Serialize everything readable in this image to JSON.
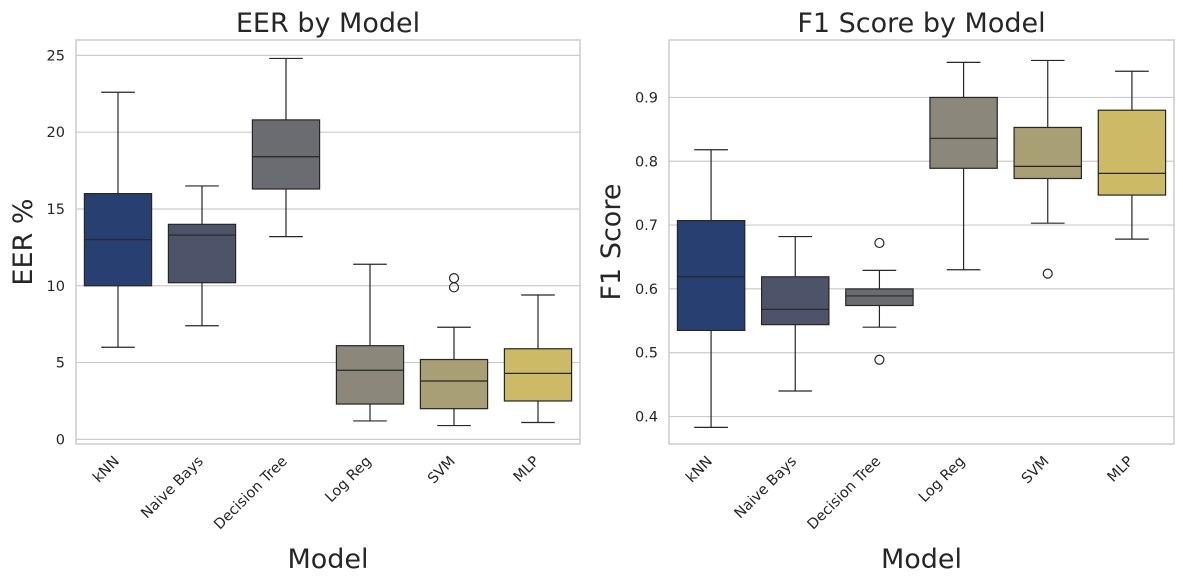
{
  "chart_data": [
    {
      "type": "box",
      "title": "EER by Model",
      "xlabel": "Model",
      "ylabel": "EER %",
      "ylim": [
        -0.3,
        26.0
      ],
      "yticks": [
        0,
        5,
        10,
        15,
        20,
        25
      ],
      "categories": [
        "kNN",
        "Naive Bays",
        "Decision Tree",
        "Log Reg",
        "SVM",
        "MLP"
      ],
      "colors": [
        "#283f71",
        "#4d5469",
        "#6b6c71",
        "#8b877a",
        "#a89f74",
        "#cdba66"
      ],
      "boxes": [
        {
          "whislo": 6.0,
          "q1": 10.0,
          "med": 13.0,
          "q3": 16.0,
          "whishi": 22.6,
          "fliers": []
        },
        {
          "whislo": 7.4,
          "q1": 10.2,
          "med": 13.3,
          "q3": 14.0,
          "whishi": 16.5,
          "fliers": []
        },
        {
          "whislo": 13.2,
          "q1": 16.3,
          "med": 18.4,
          "q3": 20.8,
          "whishi": 24.8,
          "fliers": []
        },
        {
          "whislo": 1.2,
          "q1": 2.3,
          "med": 4.5,
          "q3": 6.1,
          "whishi": 11.4,
          "fliers": []
        },
        {
          "whislo": 0.9,
          "q1": 2.0,
          "med": 3.8,
          "q3": 5.2,
          "whishi": 7.3,
          "fliers": [
            10.5,
            9.9
          ]
        },
        {
          "whislo": 1.1,
          "q1": 2.5,
          "med": 4.3,
          "q3": 5.9,
          "whishi": 9.4,
          "fliers": []
        }
      ]
    },
    {
      "type": "box",
      "title": "F1 Score by Model",
      "xlabel": "Model",
      "ylabel": "F1 Score",
      "ylim": [
        0.357,
        0.99
      ],
      "yticks": [
        0.4,
        0.5,
        0.6,
        0.7,
        0.8,
        0.9
      ],
      "categories": [
        "kNN",
        "Naive Bays",
        "Decision Tree",
        "Log Reg",
        "SVM",
        "MLP"
      ],
      "colors": [
        "#283f71",
        "#4d5469",
        "#6b6c71",
        "#8b877a",
        "#a89f74",
        "#cdba66"
      ],
      "boxes": [
        {
          "whislo": 0.383,
          "q1": 0.535,
          "med": 0.619,
          "q3": 0.707,
          "whishi": 0.818,
          "fliers": []
        },
        {
          "whislo": 0.44,
          "q1": 0.544,
          "med": 0.568,
          "q3": 0.619,
          "whishi": 0.682,
          "fliers": []
        },
        {
          "whislo": 0.54,
          "q1": 0.574,
          "med": 0.589,
          "q3": 0.6,
          "whishi": 0.629,
          "fliers": [
            0.672,
            0.489
          ]
        },
        {
          "whislo": 0.63,
          "q1": 0.789,
          "med": 0.836,
          "q3": 0.9,
          "whishi": 0.955,
          "fliers": []
        },
        {
          "whislo": 0.703,
          "q1": 0.773,
          "med": 0.792,
          "q3": 0.853,
          "whishi": 0.958,
          "fliers": [
            0.624
          ]
        },
        {
          "whislo": 0.678,
          "q1": 0.747,
          "med": 0.781,
          "q3": 0.88,
          "whishi": 0.941,
          "fliers": []
        }
      ]
    }
  ]
}
